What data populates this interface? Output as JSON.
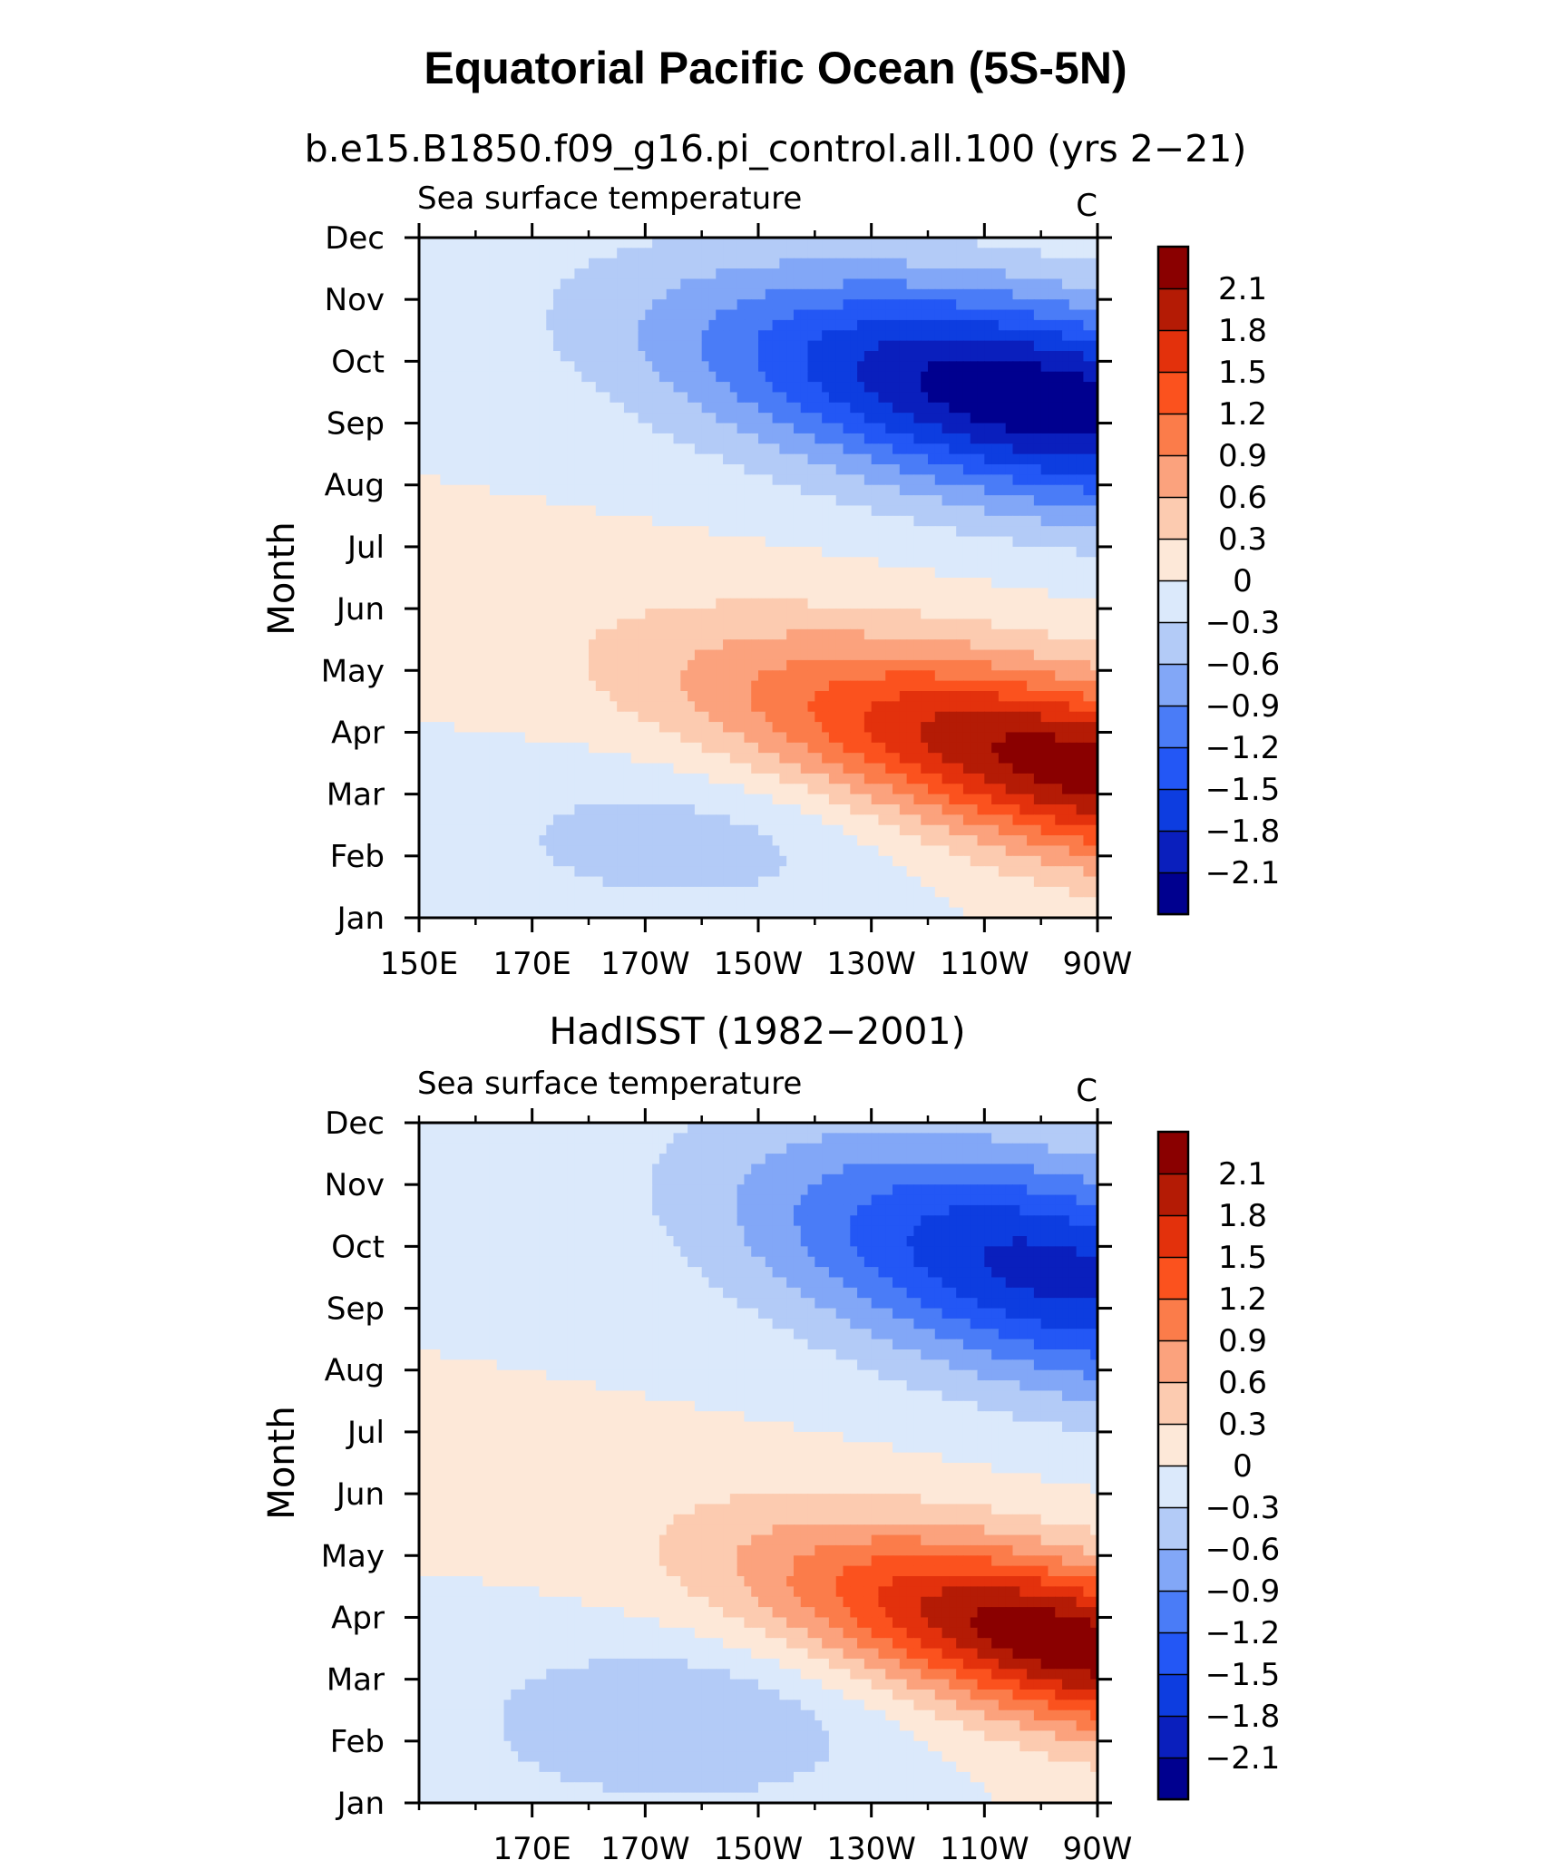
{
  "figure": {
    "title": "Equatorial Pacific Ocean (5S-5N)"
  },
  "levels": [
    -2.1,
    -1.8,
    -1.5,
    -1.2,
    -0.9,
    -0.6,
    -0.3,
    0,
    0.3,
    0.6,
    0.9,
    1.2,
    1.5,
    1.8,
    2.1
  ],
  "level_labels": [
    "2.1",
    "1.8",
    "1.5",
    "1.2",
    "0.9",
    "0.6",
    "0.3",
    "0",
    "−0.3",
    "−0.6",
    "−0.9",
    "−1.2",
    "−1.5",
    "−1.8",
    "−2.1"
  ],
  "palette": [
    "#00008f",
    "#0a1fbd",
    "#0d3de0",
    "#2357f5",
    "#4a7cf7",
    "#82a7f7",
    "#b3cbf7",
    "#dbe9fb",
    "#fde8d8",
    "#fccbb0",
    "#fba27d",
    "#fb7c4a",
    "#fb521e",
    "#e3310c",
    "#b41b05",
    "#8a0000"
  ],
  "months": [
    "Jan",
    "Feb",
    "Mar",
    "Apr",
    "May",
    "Jun",
    "Jul",
    "Aug",
    "Sep",
    "Oct",
    "Nov",
    "Dec"
  ],
  "chart_data": [
    {
      "type": "heatmap",
      "title": "b.e15.B1850.f09_g16.pi_control.all.100 (yrs 2−21)",
      "left_label": "Sea surface temperature",
      "units": "C",
      "ylabel": "Month",
      "xlabel": "",
      "x_range": [
        150,
        270
      ],
      "xtick_values": [
        150,
        170,
        190,
        210,
        230,
        250,
        270
      ],
      "xtick_labels": [
        "150E",
        "170E",
        "170W",
        "150W",
        "130W",
        "110W",
        "90W"
      ],
      "model": {
        "warm": {
          "amp": 2.3,
          "lon0": 268,
          "month0": 2.4,
          "slope": 21,
          "sx": 48,
          "sy": 1.9
        },
        "cold": {
          "amp": 2.35,
          "lon0": 258,
          "month0": 8.4,
          "slope": 15,
          "sx": 52,
          "sy": 1.9
        },
        "west_cold": {
          "amp": 0.45,
          "lon0": 198,
          "month0": 1.3,
          "sx": 42,
          "sy": 1.4
        }
      },
      "colorbar": {
        "levels": [
          -2.1,
          -1.8,
          -1.5,
          -1.2,
          -0.9,
          -0.6,
          -0.3,
          0,
          0.3,
          0.6,
          0.9,
          1.2,
          1.5,
          1.8,
          2.1
        ]
      }
    },
    {
      "type": "heatmap",
      "title": "HadISST (1982−2001)",
      "left_label": "Sea surface temperature",
      "units": "C",
      "ylabel": "Month",
      "xlabel": "",
      "x_range": [
        150,
        270
      ],
      "xtick_values": [
        170,
        190,
        210,
        230,
        250,
        270
      ],
      "xtick_labels": [
        "170E",
        "170W",
        "150W",
        "130W",
        "110W",
        "90W"
      ],
      "model": {
        "warm": {
          "amp": 2.35,
          "lon0": 264,
          "month0": 2.6,
          "slope": 18,
          "sx": 40,
          "sy": 1.7
        },
        "cold": {
          "amp": 1.9,
          "lon0": 262,
          "month0": 8.6,
          "slope": 12,
          "sx": 46,
          "sy": 2.1
        },
        "west_cold": {
          "amp": 0.6,
          "lon0": 196,
          "month0": 1.3,
          "sx": 38,
          "sy": 1.4
        }
      },
      "colorbar": {
        "levels": [
          -2.1,
          -1.8,
          -1.5,
          -1.2,
          -0.9,
          -0.6,
          -0.3,
          0,
          0.3,
          0.6,
          0.9,
          1.2,
          1.5,
          1.8,
          2.1
        ]
      }
    }
  ]
}
